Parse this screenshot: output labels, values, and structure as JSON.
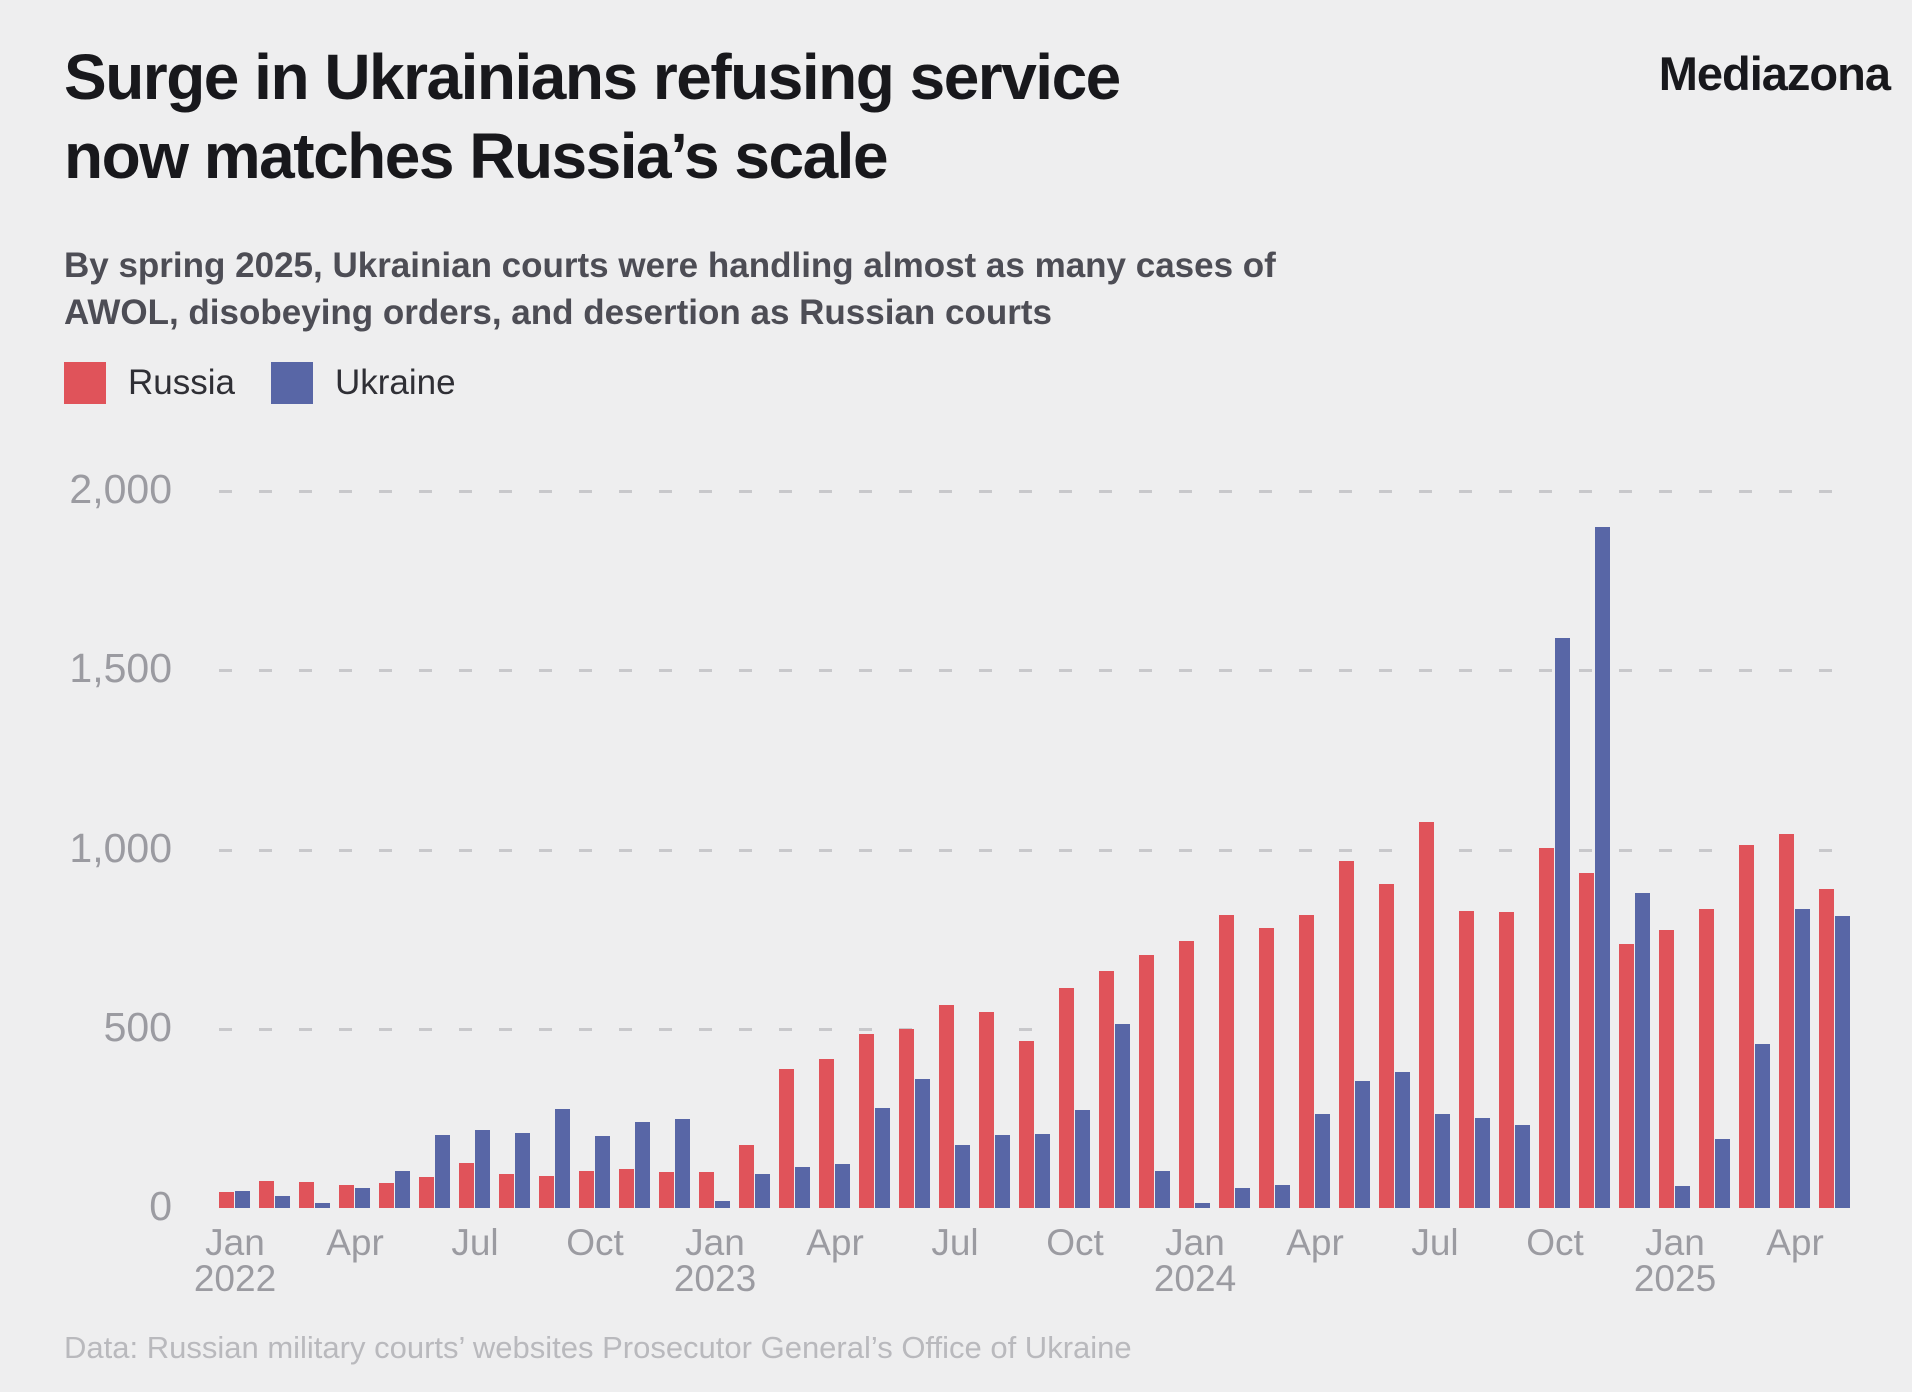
{
  "header": {
    "title_lines": [
      "Surge in Ukrainians refusing service",
      "now matches Russia’s scale"
    ],
    "logo": "Mediazona"
  },
  "subtitle": "By spring 2025, Ukrainian courts were handling almost as many cases of AWOL, disobeying orders, and desertion as Russian courts",
  "legend": [
    {
      "label": "Russia",
      "color": "#e0535a"
    },
    {
      "label": "Ukraine",
      "color": "#5866a6"
    }
  ],
  "footer": "Data: Russian military courts’ websites Prosecutor General’s Office of Ukraine",
  "colors": {
    "background": "#eeeeef",
    "russia": "#e0535a",
    "ukraine": "#5866a6",
    "gridline": "#c8c8cb",
    "axis_text": "#9b9ba1"
  },
  "chart_data": {
    "type": "bar",
    "title": "Surge in Ukrainians refusing service now matches Russia’s scale",
    "xlabel": "",
    "ylabel": "",
    "ylim": [
      0,
      2000
    ],
    "yticks": [
      0,
      500,
      1000,
      1500,
      2000
    ],
    "grid": "horizontal dashed",
    "legend_position": "top-left",
    "x_tick_months": [
      "Jan",
      "Apr",
      "Jul",
      "Oct"
    ],
    "categories": [
      "Jan 2022",
      "Feb 2022",
      "Mar 2022",
      "Apr 2022",
      "May 2022",
      "Jun 2022",
      "Jul 2022",
      "Aug 2022",
      "Sep 2022",
      "Oct 2022",
      "Nov 2022",
      "Dec 2022",
      "Jan 2023",
      "Feb 2023",
      "Mar 2023",
      "Apr 2023",
      "May 2023",
      "Jun 2023",
      "Jul 2023",
      "Aug 2023",
      "Sep 2023",
      "Oct 2023",
      "Nov 2023",
      "Dec 2023",
      "Jan 2024",
      "Feb 2024",
      "Mar 2024",
      "Apr 2024",
      "May 2024",
      "Jun 2024",
      "Jul 2024",
      "Aug 2024",
      "Sep 2024",
      "Oct 2024",
      "Nov 2024",
      "Dec 2024",
      "Jan 2025",
      "Feb 2025",
      "Mar 2025",
      "Apr 2025",
      "May 2025"
    ],
    "series": [
      {
        "name": "Russia",
        "color": "#e0535a",
        "values": [
          44,
          75,
          73,
          64,
          71,
          87,
          125,
          94,
          90,
          104,
          110,
          100,
          101,
          176,
          387,
          417,
          486,
          499,
          565,
          547,
          466,
          614,
          662,
          706,
          746,
          818,
          780,
          817,
          967,
          905,
          1078,
          829,
          827,
          1004,
          934,
          737,
          776,
          834,
          1013,
          1043,
          890
        ]
      },
      {
        "name": "Ukraine",
        "color": "#5866a6",
        "values": [
          47,
          33,
          15,
          57,
          103,
          204,
          218,
          209,
          275,
          200,
          240,
          248,
          20,
          96,
          114,
          123,
          279,
          359,
          176,
          203,
          207,
          272,
          514,
          104,
          15,
          57,
          64,
          263,
          353,
          380,
          262,
          251,
          232,
          1590,
          1899,
          878,
          61,
          193,
          458,
          833,
          815
        ]
      }
    ]
  },
  "axis": {
    "zero_label": "0"
  }
}
